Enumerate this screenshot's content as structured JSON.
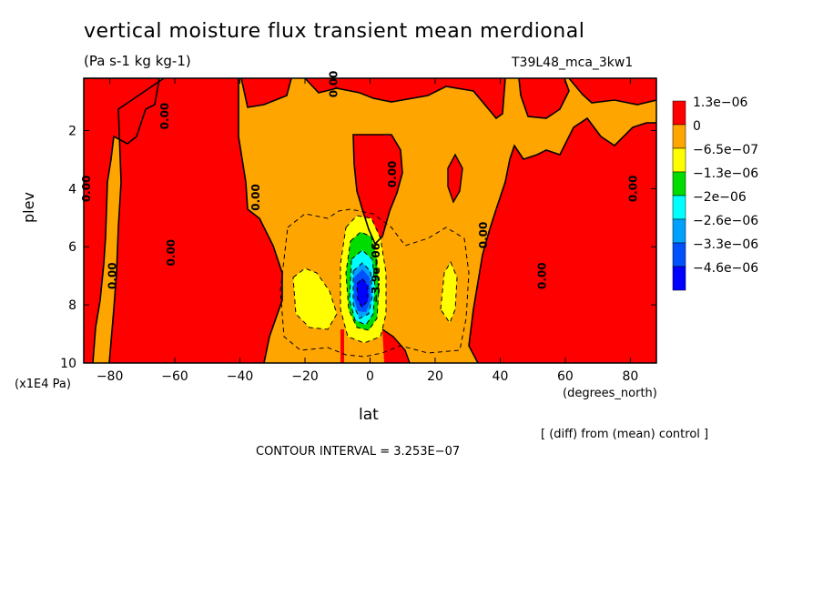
{
  "chart_data": {
    "type": "heatmap",
    "title": "vertical moisture flux transient mean merdional",
    "units": "(Pa s-1 kg kg-1)",
    "run_id": "T39L48_mca_3kw1",
    "xlabel": "lat",
    "xlabel_units": "(degrees_north)",
    "ylabel": "plev",
    "ylabel_units": "(x1E4 Pa)",
    "xlim": [
      -88,
      88
    ],
    "ylim": [
      10,
      0.2
    ],
    "x_ticks": [
      -80,
      -60,
      -40,
      -20,
      0,
      20,
      40,
      60,
      80
    ],
    "x_tick_labels": [
      "−80",
      "−60",
      "−40",
      "−20",
      "0",
      "20",
      "40",
      "60",
      "80"
    ],
    "y_ticks": [
      2,
      4,
      6,
      8,
      10
    ],
    "y_tick_labels": [
      "2",
      "4",
      "6",
      "8",
      "10"
    ],
    "legend": [
      {
        "label": "1.3e−06",
        "color": "#ff0000"
      },
      {
        "label": "0",
        "color": "#ffa500"
      },
      {
        "label": "−6.5e−07",
        "color": "#ffff00"
      },
      {
        "label": "−1.3e−06",
        "color": "#00dc00"
      },
      {
        "label": "−2e−06",
        "color": "#00ffff"
      },
      {
        "label": "−2.6e−06",
        "color": "#00a0ff"
      },
      {
        "label": "−3.3e−06",
        "color": "#0050ff"
      },
      {
        "label": "−4.6e−06",
        "color": "#0000ff"
      }
    ],
    "contour_labels": [
      {
        "text": "0.00",
        "x": -86,
        "y": 4.0
      },
      {
        "text": "0.00",
        "x": -78,
        "y": 7.0
      },
      {
        "text": "0.00",
        "x": -62,
        "y": 1.5
      },
      {
        "text": "0.00",
        "x": -60,
        "y": 6.2
      },
      {
        "text": "0.00",
        "x": -34,
        "y": 4.3
      },
      {
        "text": "0.00",
        "x": -10,
        "y": 0.4
      },
      {
        "text": "0.00",
        "x": 8,
        "y": 3.5
      },
      {
        "text": "0.00",
        "x": 36,
        "y": 5.6
      },
      {
        "text": "0.00",
        "x": 54,
        "y": 7.0
      },
      {
        "text": "0.00",
        "x": 82,
        "y": 4.0
      },
      {
        "text": "−3.9e−06",
        "x": 3,
        "y": 6.9
      }
    ],
    "contour_interval_text": "CONTOUR INTERVAL = 3.253E−07",
    "diff_note": "[ (diff) from (mean) control ]"
  }
}
